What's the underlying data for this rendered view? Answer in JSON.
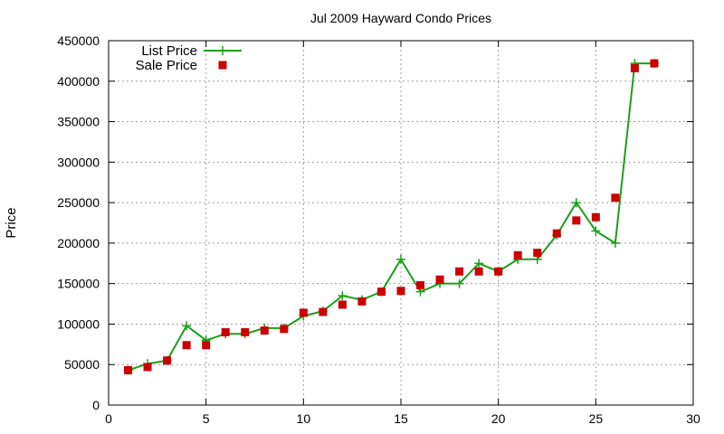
{
  "chart_data": {
    "type": "line",
    "title": "Jul 2009 Hayward Condo Prices",
    "xlabel": "",
    "ylabel": "Price",
    "xlim": [
      0,
      30
    ],
    "ylim": [
      0,
      450000
    ],
    "x_ticks": [
      "0",
      "5",
      "10",
      "15",
      "20",
      "25",
      "30"
    ],
    "y_ticks": [
      "0",
      "50000",
      "100000",
      "150000",
      "200000",
      "250000",
      "300000",
      "350000",
      "400000",
      "450000"
    ],
    "grid": true,
    "legend_position": "top-left",
    "series": [
      {
        "name": "List Price",
        "style": "line-with-plus-markers",
        "color": "#1aa01a",
        "x": [
          1,
          2,
          3,
          4,
          5,
          6,
          7,
          8,
          9,
          10,
          11,
          12,
          13,
          14,
          15,
          16,
          17,
          18,
          19,
          20,
          21,
          22,
          23,
          24,
          25,
          26,
          27,
          28
        ],
        "y": [
          43000,
          51000,
          55000,
          98000,
          80000,
          88000,
          88000,
          95000,
          95000,
          110000,
          116000,
          135000,
          130000,
          140000,
          180000,
          140000,
          150000,
          150000,
          175000,
          165000,
          180000,
          180000,
          210000,
          250000,
          215000,
          200000,
          422000,
          422000
        ]
      },
      {
        "name": "Sale Price",
        "style": "square-markers",
        "color": "#cc0000",
        "x": [
          1,
          2,
          3,
          4,
          5,
          6,
          7,
          8,
          9,
          10,
          11,
          12,
          13,
          14,
          15,
          16,
          17,
          18,
          19,
          20,
          21,
          22,
          23,
          24,
          25,
          26,
          27,
          28
        ],
        "y": [
          43000,
          47000,
          55000,
          74000,
          74000,
          90000,
          90000,
          92000,
          94000,
          114000,
          115000,
          124000,
          128000,
          140000,
          141000,
          148000,
          155000,
          165000,
          165000,
          165000,
          185000,
          188000,
          212000,
          228000,
          232000,
          256000,
          416000,
          422000
        ]
      }
    ]
  }
}
